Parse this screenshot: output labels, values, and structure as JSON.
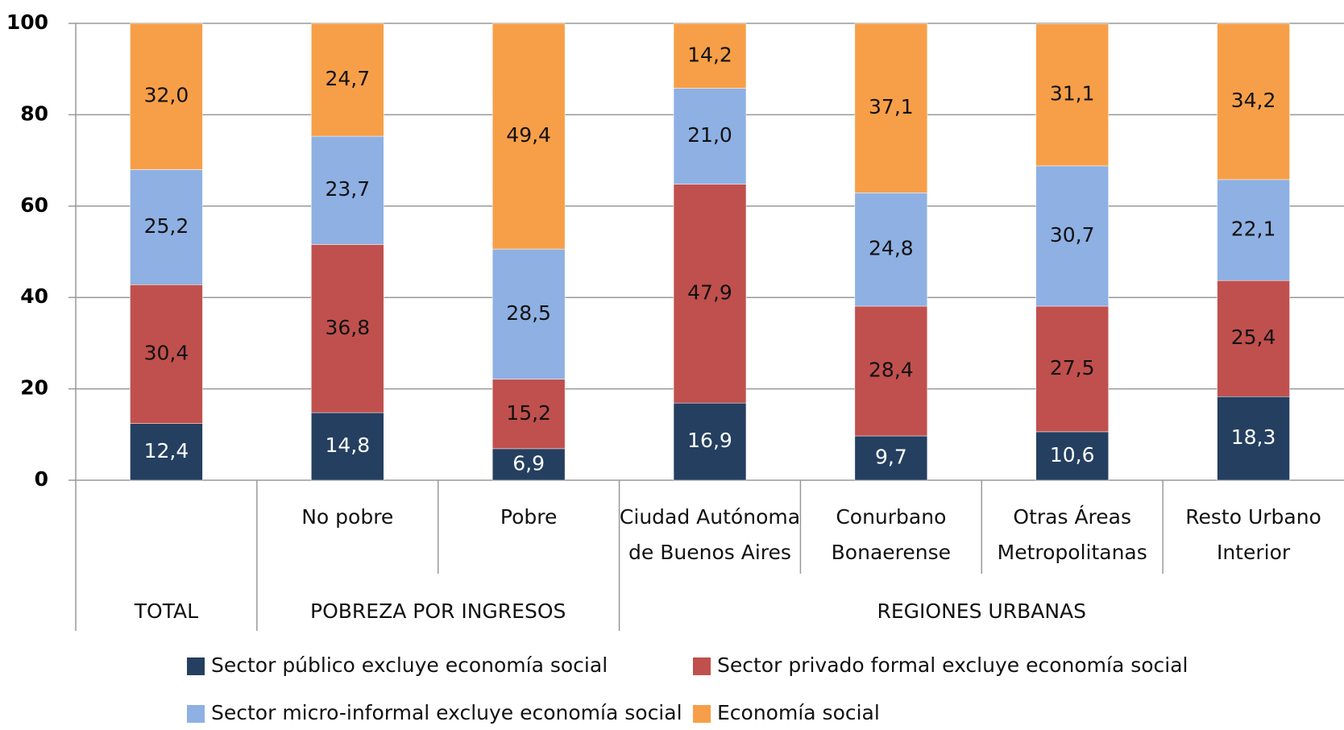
{
  "chart_data": {
    "type": "stacked_bar",
    "categories": [
      null,
      "No pobre",
      "Pobre",
      "Ciudad Autónoma de Buenos Aires",
      "Conurbano Bonaerense",
      "Otras Áreas Metropolitanas",
      "Resto Urbano Interior"
    ],
    "groups": [
      {
        "name": "TOTAL",
        "size": 1
      },
      {
        "name": "POBREZA POR INGRESOS",
        "size": 2
      },
      {
        "name": "REGIONES URBANAS",
        "size": 4
      }
    ],
    "series": [
      {
        "name": "Sector público excluye economía social",
        "color": "#243f60",
        "values": [
          12.4,
          14.8,
          6.9,
          16.9,
          9.7,
          10.6,
          18.3
        ],
        "value_labels": [
          "12,4",
          "14,8",
          "6,9",
          "16,9",
          "9,7",
          "10,6",
          "18,3"
        ]
      },
      {
        "name": "Sector privado formal excluye economía social",
        "color": "#c0504d",
        "values": [
          30.4,
          36.8,
          15.2,
          47.9,
          28.4,
          27.5,
          25.4
        ],
        "value_labels": [
          "30,4",
          "36,8",
          "15,2",
          "47,9",
          "28,4",
          "27,5",
          "25,4"
        ]
      },
      {
        "name": "Sector micro-informal excluye economía social",
        "color": "#8eb0e3",
        "values": [
          25.2,
          23.7,
          28.5,
          21.0,
          24.8,
          30.7,
          22.1
        ],
        "value_labels": [
          "25,2",
          "23,7",
          "28,5",
          "21,0",
          "24,8",
          "30,7",
          "22,1"
        ]
      },
      {
        "name": "Economía social",
        "color": "#f79f48",
        "values": [
          32.0,
          24.7,
          49.4,
          14.2,
          37.1,
          31.1,
          34.2
        ],
        "value_labels": [
          "32,0",
          "24,7",
          "49,4",
          "14,2",
          "37,1",
          "31,1",
          "34,2"
        ]
      }
    ],
    "ylim": [
      0,
      100
    ],
    "yticks": [
      0,
      20,
      40,
      60,
      80,
      100
    ],
    "grid": true,
    "legend": "bottom"
  }
}
